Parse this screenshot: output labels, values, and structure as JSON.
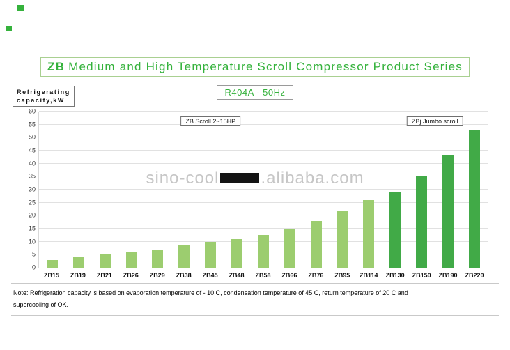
{
  "colors": {
    "accent_green": "#35b23c",
    "bar_light_green": "#9ccd6f",
    "bar_dark_green": "#41aa47",
    "watermark_gray": "#c6c6c6"
  },
  "header": {
    "title_prefix": "ZB",
    "title_rest": "Medium and High Temperature Scroll Compressor Product Series",
    "subtitle": "R404A - 50Hz"
  },
  "axis_label": {
    "line1": "Refrigerating",
    "line2": "capacity,kW"
  },
  "watermark": {
    "left": "sino-cool",
    "right": ".alibaba.com"
  },
  "note": {
    "line1": "Note: Refrigeration capacity is based on evaporation temperature of - 10 C, condensation temperature of 45 C, return temperature of 20 C and",
    "line2": "supercooling of OK."
  },
  "chart_data": {
    "type": "bar",
    "title": "ZB Medium and High Temperature Scroll Compressor Product Series",
    "subtitle": "R404A - 50Hz",
    "ylabel": "Refrigerating capacity,kW",
    "xlabel": "",
    "ylim": [
      0,
      60
    ],
    "ytick_step": 5,
    "grid": true,
    "legend": "none",
    "categories": [
      "ZB15",
      "ZB19",
      "ZB21",
      "ZB26",
      "ZB29",
      "ZB38",
      "ZB45",
      "ZB48",
      "ZB58",
      "ZB66",
      "ZB76",
      "ZB95",
      "ZB114",
      "ZB130",
      "ZB150",
      "ZB190",
      "ZB220"
    ],
    "values": [
      3,
      4,
      5,
      6,
      7,
      8.5,
      10,
      11,
      12.5,
      15,
      18,
      22,
      26,
      29,
      35,
      43,
      53
    ],
    "groups": [
      {
        "label": "ZB Scroll 2~15HP",
        "start": 0,
        "end": 12,
        "color": "#9ccd6f"
      },
      {
        "label": "ZBj Jumbo scroll",
        "start": 13,
        "end": 16,
        "color": "#41aa47"
      }
    ]
  }
}
